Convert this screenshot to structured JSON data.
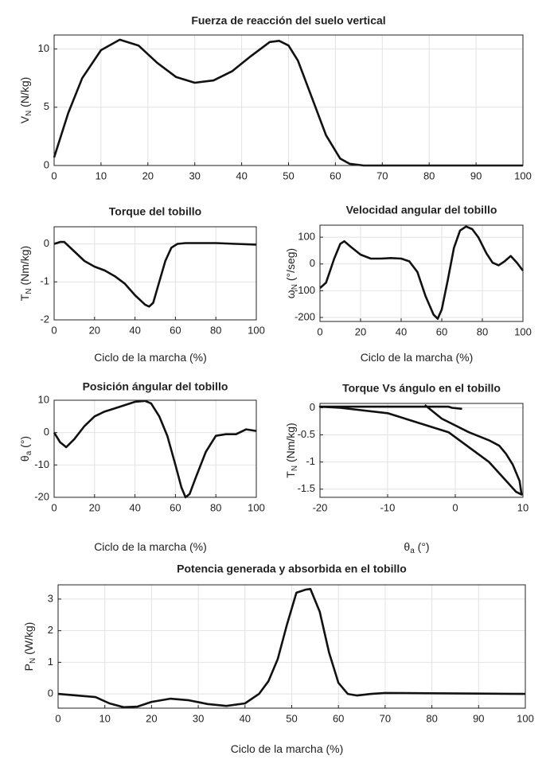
{
  "chart_data": [
    {
      "type": "line",
      "title": "Fuerza de reacción del suelo vertical",
      "ylabel": "V",
      "ylabel_sub": "N",
      "ylabel_unit": " (N/kg)",
      "color": "#111111",
      "grid": true,
      "xlim": [
        0,
        100
      ],
      "xticks": [
        0,
        10,
        20,
        30,
        40,
        50,
        60,
        70,
        80,
        90,
        100
      ],
      "ylim": [
        0,
        11.2
      ],
      "yticks": [
        0,
        5,
        10
      ],
      "x": [
        0,
        3,
        6,
        10,
        14,
        18,
        22,
        26,
        30,
        34,
        38,
        42,
        46,
        48,
        50,
        52,
        55,
        58,
        61,
        63,
        66,
        70,
        80,
        90,
        100
      ],
      "values": [
        0.7,
        4.5,
        7.5,
        9.9,
        10.8,
        10.3,
        8.8,
        7.6,
        7.1,
        7.3,
        8.1,
        9.4,
        10.6,
        10.7,
        10.3,
        9.0,
        5.8,
        2.6,
        0.6,
        0.15,
        0,
        0,
        0,
        0,
        0
      ]
    },
    {
      "type": "line",
      "title": "Torque del tobillo",
      "xlabel": "Ciclo de la marcha (%)",
      "ylabel": "T",
      "ylabel_sub": "N",
      "ylabel_unit": " (Nm/kg)",
      "color": "#111111",
      "grid": true,
      "xlim": [
        0,
        100
      ],
      "xticks": [
        0,
        20,
        40,
        60,
        80,
        100
      ],
      "ylim": [
        -2,
        0.45
      ],
      "yticks": [
        -2,
        -1,
        0
      ],
      "x": [
        0,
        3,
        5,
        10,
        15,
        20,
        25,
        30,
        35,
        40,
        45,
        47,
        49,
        52,
        55,
        58,
        61,
        65,
        70,
        80,
        90,
        100
      ],
      "values": [
        0,
        0.05,
        0.05,
        -0.2,
        -0.45,
        -0.6,
        -0.7,
        -0.85,
        -1.05,
        -1.35,
        -1.6,
        -1.65,
        -1.55,
        -1.0,
        -0.45,
        -0.1,
        0,
        0.02,
        0.02,
        0.02,
        0,
        -0.02
      ]
    },
    {
      "type": "line",
      "title": "Velocidad angular del tobillo",
      "xlabel": "Ciclo de la marcha (%)",
      "ylabel": "ω",
      "ylabel_sub": "N",
      "ylabel_unit": " (°/seg)",
      "color": "#111111",
      "grid": true,
      "xlim": [
        0,
        100
      ],
      "xticks": [
        0,
        20,
        40,
        60,
        80,
        100
      ],
      "ylim": [
        -215,
        145
      ],
      "yticks": [
        -200,
        -100,
        0,
        100
      ],
      "x": [
        0,
        3,
        7,
        10,
        12,
        15,
        20,
        25,
        30,
        35,
        40,
        44,
        48,
        52,
        56,
        58,
        60,
        63,
        66,
        69,
        72,
        75,
        78,
        82,
        85,
        88,
        91,
        94,
        97,
        100
      ],
      "values": [
        -90,
        -70,
        20,
        75,
        85,
        65,
        35,
        20,
        20,
        22,
        20,
        10,
        -30,
        -120,
        -190,
        -205,
        -170,
        -60,
        60,
        125,
        140,
        130,
        100,
        40,
        5,
        -5,
        10,
        30,
        5,
        -25
      ]
    },
    {
      "type": "line",
      "title": "Posición ángular del tobillo",
      "xlabel": "Ciclo de la marcha (%)",
      "ylabel": "θ",
      "ylabel_sub": "a",
      "ylabel_unit": " (°)",
      "color": "#111111",
      "grid": true,
      "xlim": [
        0,
        100
      ],
      "xticks": [
        0,
        20,
        40,
        60,
        80,
        100
      ],
      "ylim": [
        -20,
        10
      ],
      "yticks": [
        -20,
        -10,
        0,
        10
      ],
      "x": [
        0,
        3,
        6,
        10,
        15,
        20,
        25,
        30,
        35,
        40,
        45,
        48,
        52,
        56,
        60,
        63,
        65,
        67,
        70,
        75,
        80,
        85,
        90,
        95,
        100
      ],
      "values": [
        0,
        -3,
        -4.5,
        -2,
        2,
        5,
        6.5,
        7.5,
        8.5,
        9.5,
        9.8,
        9,
        5,
        -1,
        -10,
        -17,
        -20,
        -19,
        -14,
        -6,
        -1,
        -0.5,
        -0.5,
        1,
        0.5
      ]
    },
    {
      "type": "line",
      "title": "Torque Vs ángulo en el tobillo",
      "xlabel": "θ",
      "xlabel_sub": "a",
      "xlabel_unit": " (°)",
      "ylabel": "T",
      "ylabel_sub": "N",
      "ylabel_unit": " (Nm/kg)",
      "color": "#111111",
      "grid": true,
      "xlim": [
        -20,
        10
      ],
      "xticks": [
        -20,
        -10,
        0,
        10
      ],
      "ylim": [
        -1.65,
        0.08
      ],
      "yticks": [
        -1.5,
        -1,
        -0.5,
        0
      ],
      "x": [
        -4.5,
        -2,
        2,
        5,
        6.5,
        7.5,
        8.5,
        9.5,
        9.8,
        9,
        5,
        -1,
        -10,
        -17,
        -20,
        -19,
        -14,
        -6,
        -1,
        -0.5,
        1
      ],
      "values": [
        0.05,
        -0.2,
        -0.45,
        -0.6,
        -0.7,
        -0.85,
        -1.05,
        -1.35,
        -1.6,
        -1.55,
        -1.0,
        -0.45,
        -0.1,
        0,
        0.02,
        0.02,
        0.02,
        0.02,
        0.02,
        0,
        -0.02
      ]
    },
    {
      "type": "line",
      "title": "Potencia generada y absorbida en el tobillo",
      "xlabel": "Ciclo de la marcha (%)",
      "ylabel": "P",
      "ylabel_sub": "N",
      "ylabel_unit": " (W/kg)",
      "color": "#111111",
      "grid": true,
      "xlim": [
        0,
        100
      ],
      "xticks": [
        0,
        10,
        20,
        30,
        40,
        50,
        60,
        70,
        80,
        90,
        100
      ],
      "ylim": [
        -0.45,
        3.45
      ],
      "yticks": [
        0,
        1,
        2,
        3
      ],
      "x": [
        0,
        4,
        8,
        11,
        14,
        17,
        20,
        24,
        28,
        32,
        36,
        40,
        43,
        45,
        47,
        49,
        51,
        53,
        54,
        56,
        58,
        60,
        62,
        64,
        67,
        70,
        80,
        90,
        100
      ],
      "values": [
        0,
        -0.05,
        -0.1,
        -0.3,
        -0.42,
        -0.4,
        -0.25,
        -0.15,
        -0.2,
        -0.32,
        -0.38,
        -0.3,
        0,
        0.4,
        1.1,
        2.2,
        3.2,
        3.3,
        3.32,
        2.6,
        1.3,
        0.35,
        0,
        -0.05,
        0,
        0.03,
        0.02,
        0.01,
        0
      ]
    }
  ]
}
